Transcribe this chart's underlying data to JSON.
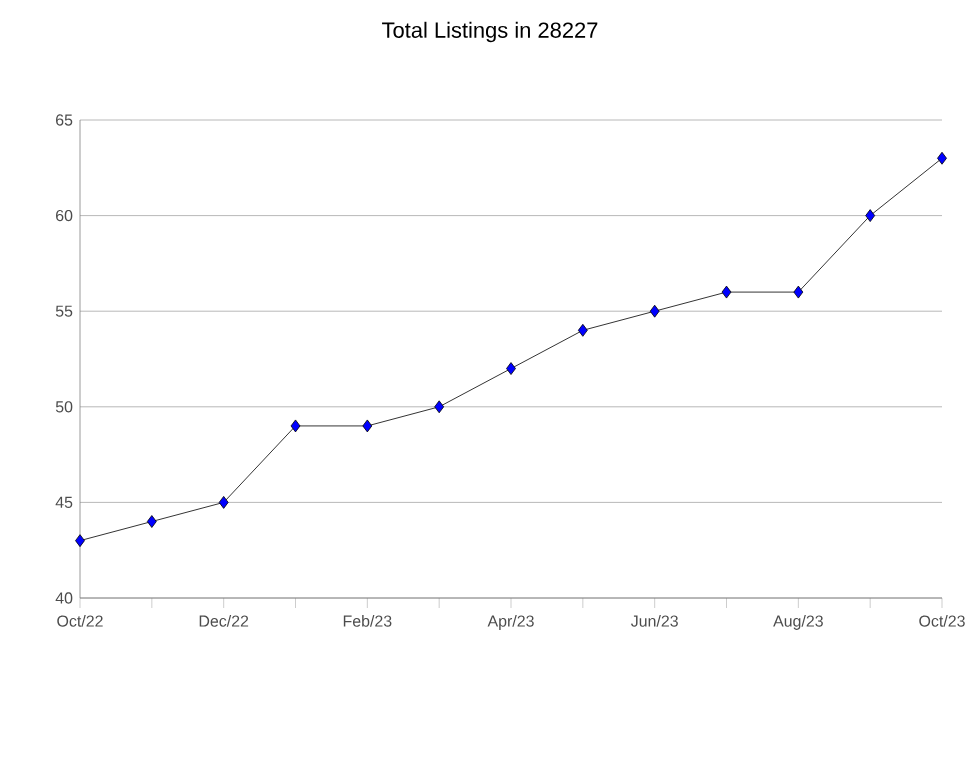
{
  "chart_data": {
    "type": "line",
    "title": "Total Listings in 28227",
    "categories": [
      "Oct/22",
      null,
      "Dec/22",
      null,
      "Feb/23",
      null,
      "Apr/23",
      null,
      "Jun/23",
      null,
      "Aug/23",
      null,
      "Oct/23"
    ],
    "series": [
      {
        "color": "#0000ff",
        "values": [
          43,
          44,
          45,
          49,
          49,
          50,
          52,
          54,
          55,
          56,
          56,
          60,
          63
        ]
      }
    ],
    "ylim": [
      40,
      65
    ],
    "yticks": [
      40,
      45,
      50,
      55,
      60,
      65
    ],
    "grid": "y",
    "marker": "diamond",
    "line_style": "solid"
  }
}
